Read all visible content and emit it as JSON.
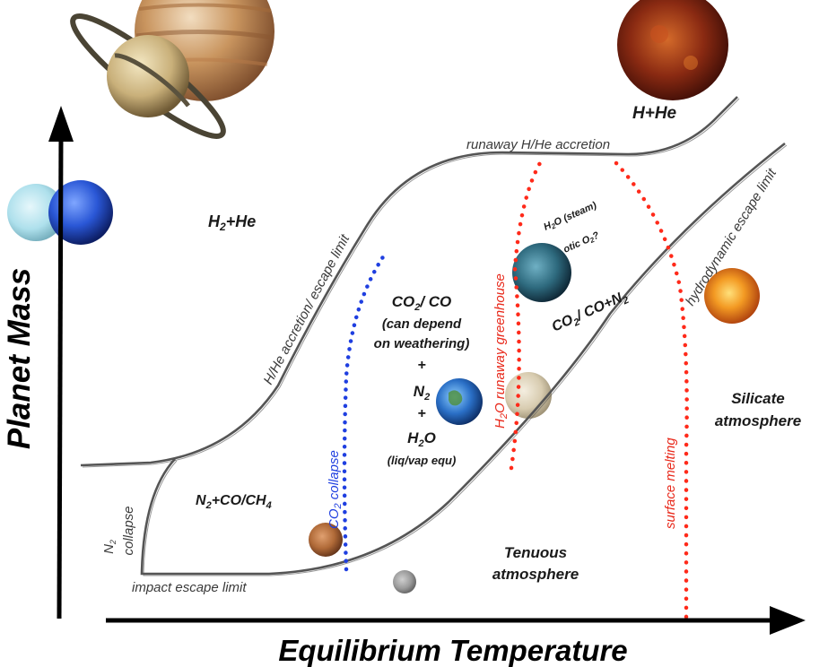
{
  "axes": {
    "y_title": "Planet Mass",
    "x_title": "Equilibrium Temperature"
  },
  "regions": {
    "hhe": "H+He",
    "h2he": "H",
    "h2he_sub": "2",
    "h2he_tail": "+He",
    "co2co": "CO",
    "co2co_sub": "2",
    "co2co_tail": "/ CO",
    "weathering_1": "(can depend",
    "weathering_2": "on weathering)",
    "plus1": "+",
    "n2": "N",
    "n2_sub": "2",
    "plus2": "+",
    "h2o": "H",
    "h2o_sub": "2",
    "h2o_tail": "O",
    "liqvap": "(liq/vap equ)",
    "n2coch4_a": "N",
    "n2coch4_sub1": "2",
    "n2coch4_b": "+CO/CH",
    "n2coch4_sub2": "4",
    "steam_a": "H",
    "steam_sub": "2",
    "steam_b": "O (steam)",
    "abiotic_a": "otic O",
    "abiotic_sub": "2",
    "abiotic_b": "?",
    "co2con2_a": "CO",
    "co2con2_sub": "2",
    "co2con2_b": "/ CO+N",
    "co2con2_sub2": "2",
    "silicate_1": "Silicate",
    "silicate_2": "atmosphere",
    "tenuous_1": "Tenuous",
    "tenuous_2": "atmosphere",
    "n2collapse_a": "N",
    "n2collapse_sub": "2",
    "n2collapse_b": "collapse"
  },
  "curves": {
    "runaway": "runaway H/He accretion",
    "hhe_limit": "H/He accretion/ escape limit",
    "hydro": "hydrodynamic escape limit",
    "impact": "impact escape limit",
    "co2_collapse_a": "CO",
    "co2_collapse_sub": "2",
    "co2_collapse_b": " collapse",
    "greenhouse_a": "H",
    "greenhouse_sub": "2",
    "greenhouse_b": "O runaway greenhouse",
    "surface_melting": "surface melting"
  },
  "colors": {
    "boundary": "#555555",
    "co2_dots": "#1f3fe0",
    "red_dots": "#ff2a1a",
    "axis": "#000000"
  },
  "icons": {
    "planets": [
      "jupiter-icon",
      "saturn-icon",
      "hot-jupiter-icon",
      "uranus-icon",
      "neptune-icon",
      "exo-earth-icon",
      "lava-planet-icon",
      "earth-icon",
      "venus-icon",
      "mars-icon",
      "moon-icon"
    ]
  }
}
